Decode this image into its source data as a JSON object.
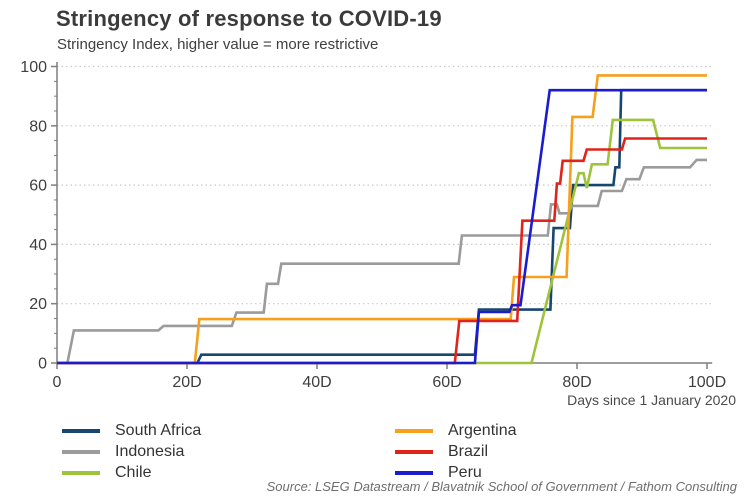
{
  "title": "Stringency of response to COVID-19",
  "subtitle": "Stringency Index, higher value = more restrictive",
  "source": "Source: LSEG Datastream / Blavatnik School of Government / Fathom Consulting",
  "chart_data": {
    "type": "line",
    "title": "Stringency of response to COVID-19",
    "subtitle": "Stringency Index, higher value = more restrictive",
    "xlabel": "Days since 1 January 2020",
    "ylabel": "Stringency Index",
    "xlim": [
      0,
      100
    ],
    "ylim": [
      0,
      100
    ],
    "grid": "horizontal-dotted",
    "legend_position": "bottom",
    "x_ticks": [
      {
        "value": 0,
        "label": "0"
      },
      {
        "value": 20,
        "label": "20D"
      },
      {
        "value": 40,
        "label": "40D"
      },
      {
        "value": 60,
        "label": "60D"
      },
      {
        "value": 80,
        "label": "80D"
      },
      {
        "value": 100,
        "label": "100D"
      }
    ],
    "y_ticks": [
      {
        "value": 0,
        "label": "0"
      },
      {
        "value": 20,
        "label": "20"
      },
      {
        "value": 40,
        "label": "40"
      },
      {
        "value": 60,
        "label": "60"
      },
      {
        "value": 80,
        "label": "80"
      },
      {
        "value": 100,
        "label": "100"
      }
    ],
    "y_minor_tick_step": 5,
    "gridline_values": [
      20,
      40,
      60,
      80,
      100
    ],
    "series": [
      {
        "name": "South Africa",
        "color": "#17466F",
        "points": [
          [
            0,
            0
          ],
          [
            21.6,
            0
          ],
          [
            22.2,
            2.8
          ],
          [
            64.3,
            2.8
          ],
          [
            64.9,
            18
          ],
          [
            75.9,
            18
          ],
          [
            76.4,
            45.5
          ],
          [
            78.9,
            45.5
          ],
          [
            79.4,
            60
          ],
          [
            85.6,
            60
          ],
          [
            85.9,
            66
          ],
          [
            86.5,
            66
          ],
          [
            86.8,
            92
          ],
          [
            100,
            92
          ]
        ]
      },
      {
        "name": "Indonesia",
        "color": "#9B9B9B",
        "points": [
          [
            0,
            0
          ],
          [
            1.6,
            0
          ],
          [
            2.6,
            11
          ],
          [
            15.6,
            11
          ],
          [
            16.4,
            12.5
          ],
          [
            26.9,
            12.5
          ],
          [
            27.6,
            17
          ],
          [
            31.8,
            17
          ],
          [
            32.3,
            26.7
          ],
          [
            34,
            26.7
          ],
          [
            34.5,
            33.5
          ],
          [
            61.8,
            33.5
          ],
          [
            62.3,
            43
          ],
          [
            75.5,
            43
          ],
          [
            76,
            53.5
          ],
          [
            76.9,
            53.5
          ],
          [
            77.3,
            50.5
          ],
          [
            78.7,
            50.5
          ],
          [
            79.2,
            53
          ],
          [
            83.2,
            53
          ],
          [
            83.8,
            58
          ],
          [
            86.9,
            58
          ],
          [
            87.6,
            62
          ],
          [
            89.6,
            62
          ],
          [
            90.3,
            66
          ],
          [
            97.4,
            66
          ],
          [
            98.4,
            68.5
          ],
          [
            100,
            68.5
          ]
        ]
      },
      {
        "name": "Chile",
        "color": "#9DC43B",
        "points": [
          [
            0,
            0
          ],
          [
            73,
            0
          ],
          [
            80.3,
            64
          ],
          [
            81,
            64
          ],
          [
            81.5,
            59
          ],
          [
            82.3,
            67
          ],
          [
            84.7,
            67
          ],
          [
            85.5,
            82
          ],
          [
            91.7,
            82
          ],
          [
            92.8,
            72.5
          ],
          [
            100,
            72.5
          ]
        ]
      },
      {
        "name": "Argentina",
        "color": "#F6A01E",
        "points": [
          [
            0,
            0
          ],
          [
            21.2,
            0
          ],
          [
            21.9,
            14.8
          ],
          [
            69.8,
            14.8
          ],
          [
            70.3,
            29
          ],
          [
            78.4,
            29
          ],
          [
            79.3,
            83
          ],
          [
            82.4,
            83
          ],
          [
            83.2,
            97
          ],
          [
            100,
            97
          ]
        ]
      },
      {
        "name": "Brazil",
        "color": "#E2231A",
        "points": [
          [
            0,
            0
          ],
          [
            61.2,
            0
          ],
          [
            61.9,
            14.2
          ],
          [
            70.8,
            14.2
          ],
          [
            71.6,
            48
          ],
          [
            76.5,
            48
          ],
          [
            76.9,
            60.5
          ],
          [
            77.4,
            60.5
          ],
          [
            77.8,
            68.2
          ],
          [
            81,
            68.2
          ],
          [
            81.5,
            72
          ],
          [
            86.9,
            72
          ],
          [
            87.4,
            75.7
          ],
          [
            100,
            75.7
          ]
        ]
      },
      {
        "name": "Peru",
        "color": "#1B1BD0",
        "points": [
          [
            0,
            0
          ],
          [
            64.3,
            0
          ],
          [
            64.9,
            17.2
          ],
          [
            69.6,
            17.2
          ],
          [
            70,
            19.5
          ],
          [
            71.3,
            19.5
          ],
          [
            75.8,
            92
          ],
          [
            100,
            92
          ]
        ]
      }
    ]
  }
}
